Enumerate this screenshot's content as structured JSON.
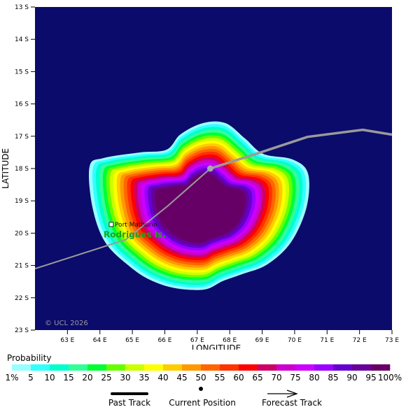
{
  "axes": {
    "xlabel": "LONGITUDE",
    "ylabel": "LATITUDE",
    "lat_ticks": [
      "13 S",
      "14 S",
      "15 S",
      "16 S",
      "17 S",
      "18 S",
      "19 S",
      "20 S",
      "21 S",
      "22 S",
      "23 S"
    ],
    "lon_ticks": [
      "63 E",
      "64 E",
      "65 E",
      "66 E",
      "67 E",
      "68 E",
      "69 E",
      "70 E",
      "71 E",
      "72 E",
      "73 E"
    ]
  },
  "map": {
    "background_color": "#0b0b6b",
    "copyright": "© UCL 2026",
    "places": [
      {
        "name": "Port Mathurin",
        "lon": 64.35,
        "lat": -19.73
      },
      {
        "name": "Rodrigues Is.",
        "lon": 64.2,
        "lat": -20.05
      }
    ],
    "past_track": [
      [
        62.0,
        -21.1
      ],
      [
        64.8,
        -20.2
      ],
      [
        66.1,
        -19.15
      ],
      [
        67.4,
        -18.0
      ]
    ],
    "current_position": [
      67.4,
      -18.0
    ],
    "forecast_track": [
      [
        67.4,
        -18.0
      ],
      [
        68.8,
        -17.55
      ],
      [
        70.4,
        -17.02
      ],
      [
        72.1,
        -16.8
      ],
      [
        73.0,
        -16.95
      ]
    ]
  },
  "legend": {
    "title": "Probability",
    "labels": [
      "1%",
      "5",
      "10",
      "15",
      "20",
      "25",
      "30",
      "35",
      "40",
      "45",
      "50",
      "55",
      "60",
      "65",
      "70",
      "75",
      "80",
      "85",
      "90",
      "95",
      "100%"
    ],
    "colors": [
      "#99ffff",
      "#33ffff",
      "#00ffcc",
      "#33ff99",
      "#00ff33",
      "#66ff00",
      "#ccff00",
      "#ffff00",
      "#ffcc00",
      "#ff9900",
      "#ff6600",
      "#ff3300",
      "#ff0000",
      "#cc0066",
      "#cc00cc",
      "#cc00ff",
      "#9900ff",
      "#6600cc",
      "#660099",
      "#660066"
    ],
    "past_track": "Past Track",
    "current_position": "Current Position",
    "forecast_track": "Forecast Track"
  }
}
